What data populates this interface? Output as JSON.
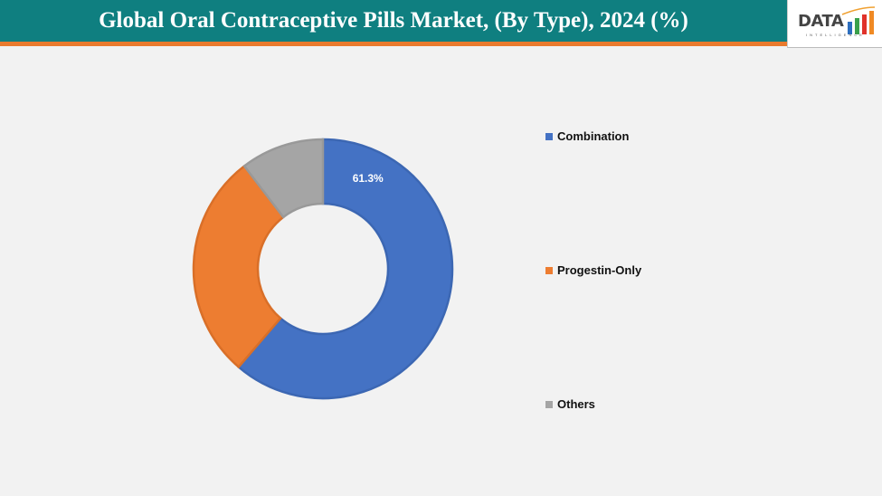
{
  "header": {
    "title": "Global Oral Contraceptive Pills Market, (By Type), 2024 (%)"
  },
  "logo": {
    "text": "DATA",
    "subtext": "INTELLIGENCE"
  },
  "chart_data": {
    "type": "pie",
    "subtype": "donut",
    "categories": [
      "Combination",
      "Progestin-Only",
      "Others"
    ],
    "values": [
      61.3,
      28.3,
      10.4
    ],
    "colors": [
      "#4472c4",
      "#ed7d31",
      "#a5a5a5"
    ],
    "data_labels": [
      "61.3%",
      "",
      ""
    ],
    "legend_position": "right"
  }
}
